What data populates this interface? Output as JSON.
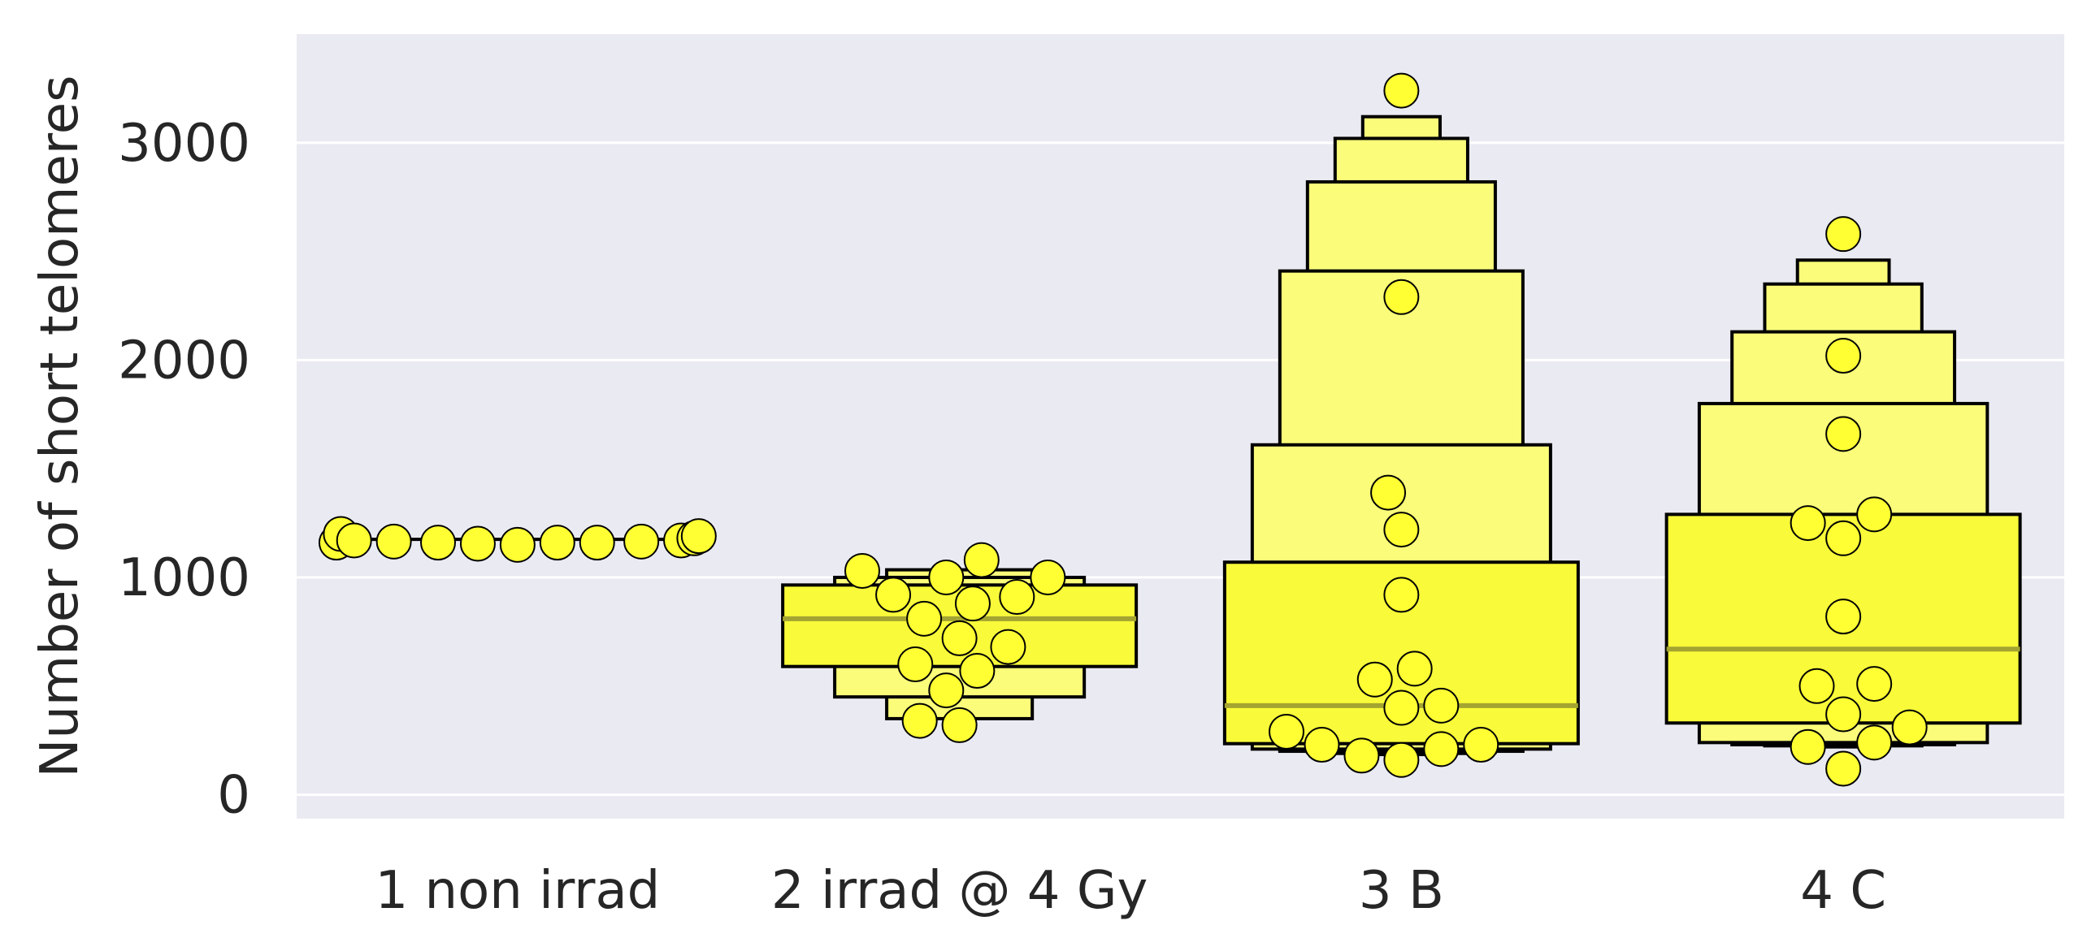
{
  "chart_data": {
    "type": "boxen",
    "title": "",
    "xlabel": "",
    "ylabel": "Number of short telomeres",
    "ylim": [
      -110,
      3500
    ],
    "yticks": [
      0,
      1000,
      2000,
      3000
    ],
    "ytick_labels": [
      "0",
      "1000",
      "2000",
      "3000"
    ],
    "categories": [
      "1 non irrad",
      "2 irrad @ 4 Gy",
      "3 B",
      "4 C"
    ],
    "grid": true,
    "colors": {
      "background": "#EAEAF2",
      "grid": "#FFFFFF",
      "box_fill": "#F8FA3A",
      "box_fill_light": "#FAFC7A",
      "box_edge": "#000000",
      "median": "#A3A431",
      "point_fill": "#FFFF33",
      "point_edge": "#000000"
    },
    "groups": [
      {
        "category": "1 non irrad",
        "median": 1175,
        "boxes": [],
        "points": [
          {
            "x": 1160,
            "offset": -0.41
          },
          {
            "x": 1200,
            "offset": -0.4
          },
          {
            "x": 1170,
            "offset": -0.37
          },
          {
            "x": 1165,
            "offset": -0.28
          },
          {
            "x": 1160,
            "offset": -0.18
          },
          {
            "x": 1155,
            "offset": -0.09
          },
          {
            "x": 1150,
            "offset": 0.0
          },
          {
            "x": 1160,
            "offset": 0.09
          },
          {
            "x": 1160,
            "offset": 0.18
          },
          {
            "x": 1165,
            "offset": 0.28
          },
          {
            "x": 1170,
            "offset": 0.37
          },
          {
            "x": 1180,
            "offset": 0.4
          },
          {
            "x": 1190,
            "offset": 0.41
          }
        ]
      },
      {
        "category": "2 irrad @ 4 Gy",
        "median": 810,
        "boxes": [
          {
            "low": 590,
            "high": 965,
            "level": 0
          },
          {
            "low": 450,
            "high": 1000,
            "level": 1
          },
          {
            "low": 350,
            "high": 1035,
            "level": 2
          }
        ],
        "points": [
          {
            "x": 1030,
            "offset": -0.22
          },
          {
            "x": 920,
            "offset": -0.15
          },
          {
            "x": 810,
            "offset": -0.08
          },
          {
            "x": 1000,
            "offset": -0.03
          },
          {
            "x": 1080,
            "offset": 0.05
          },
          {
            "x": 880,
            "offset": 0.03
          },
          {
            "x": 720,
            "offset": 0.0
          },
          {
            "x": 910,
            "offset": 0.13
          },
          {
            "x": 1000,
            "offset": 0.2
          },
          {
            "x": 600,
            "offset": -0.1
          },
          {
            "x": 680,
            "offset": 0.11
          },
          {
            "x": 570,
            "offset": 0.04
          },
          {
            "x": 480,
            "offset": -0.03
          },
          {
            "x": 340,
            "offset": -0.09
          },
          {
            "x": 320,
            "offset": 0.0
          }
        ]
      },
      {
        "category": "3 B",
        "median": 410,
        "boxes": [
          {
            "low": 235,
            "high": 1070,
            "level": 0
          },
          {
            "low": 210,
            "high": 1610,
            "level": 1
          },
          {
            "low": 200,
            "high": 2410,
            "level": 2
          },
          {
            "low": 195,
            "high": 2820,
            "level": 3
          },
          {
            "low": 190,
            "high": 3020,
            "level": 4
          },
          {
            "low": 185,
            "high": 3120,
            "level": 5
          }
        ],
        "points": [
          {
            "x": 3240,
            "offset": 0.0
          },
          {
            "x": 2290,
            "offset": 0.0
          },
          {
            "x": 1390,
            "offset": -0.03
          },
          {
            "x": 1220,
            "offset": 0.0
          },
          {
            "x": 920,
            "offset": 0.0
          },
          {
            "x": 580,
            "offset": 0.03
          },
          {
            "x": 530,
            "offset": -0.06
          },
          {
            "x": 400,
            "offset": 0.0
          },
          {
            "x": 410,
            "offset": 0.09
          },
          {
            "x": 290,
            "offset": -0.26
          },
          {
            "x": 230,
            "offset": -0.18
          },
          {
            "x": 180,
            "offset": -0.09
          },
          {
            "x": 160,
            "offset": 0.0
          },
          {
            "x": 210,
            "offset": 0.09
          },
          {
            "x": 230,
            "offset": 0.18
          }
        ]
      },
      {
        "category": "4 C",
        "median": 670,
        "boxes": [
          {
            "low": 330,
            "high": 1290,
            "level": 0
          },
          {
            "low": 240,
            "high": 1800,
            "level": 1
          },
          {
            "low": 230,
            "high": 2130,
            "level": 2
          },
          {
            "low": 225,
            "high": 2350,
            "level": 3
          },
          {
            "low": 220,
            "high": 2460,
            "level": 4
          }
        ],
        "points": [
          {
            "x": 2580,
            "offset": 0.0
          },
          {
            "x": 2020,
            "offset": 0.0
          },
          {
            "x": 1660,
            "offset": 0.0
          },
          {
            "x": 1250,
            "offset": -0.08
          },
          {
            "x": 1180,
            "offset": 0.0
          },
          {
            "x": 1290,
            "offset": 0.07
          },
          {
            "x": 820,
            "offset": 0.0
          },
          {
            "x": 500,
            "offset": -0.06
          },
          {
            "x": 510,
            "offset": 0.07
          },
          {
            "x": 370,
            "offset": 0.0
          },
          {
            "x": 310,
            "offset": 0.15
          },
          {
            "x": 220,
            "offset": -0.08
          },
          {
            "x": 240,
            "offset": 0.07
          },
          {
            "x": 120,
            "offset": 0.0
          }
        ]
      }
    ]
  }
}
